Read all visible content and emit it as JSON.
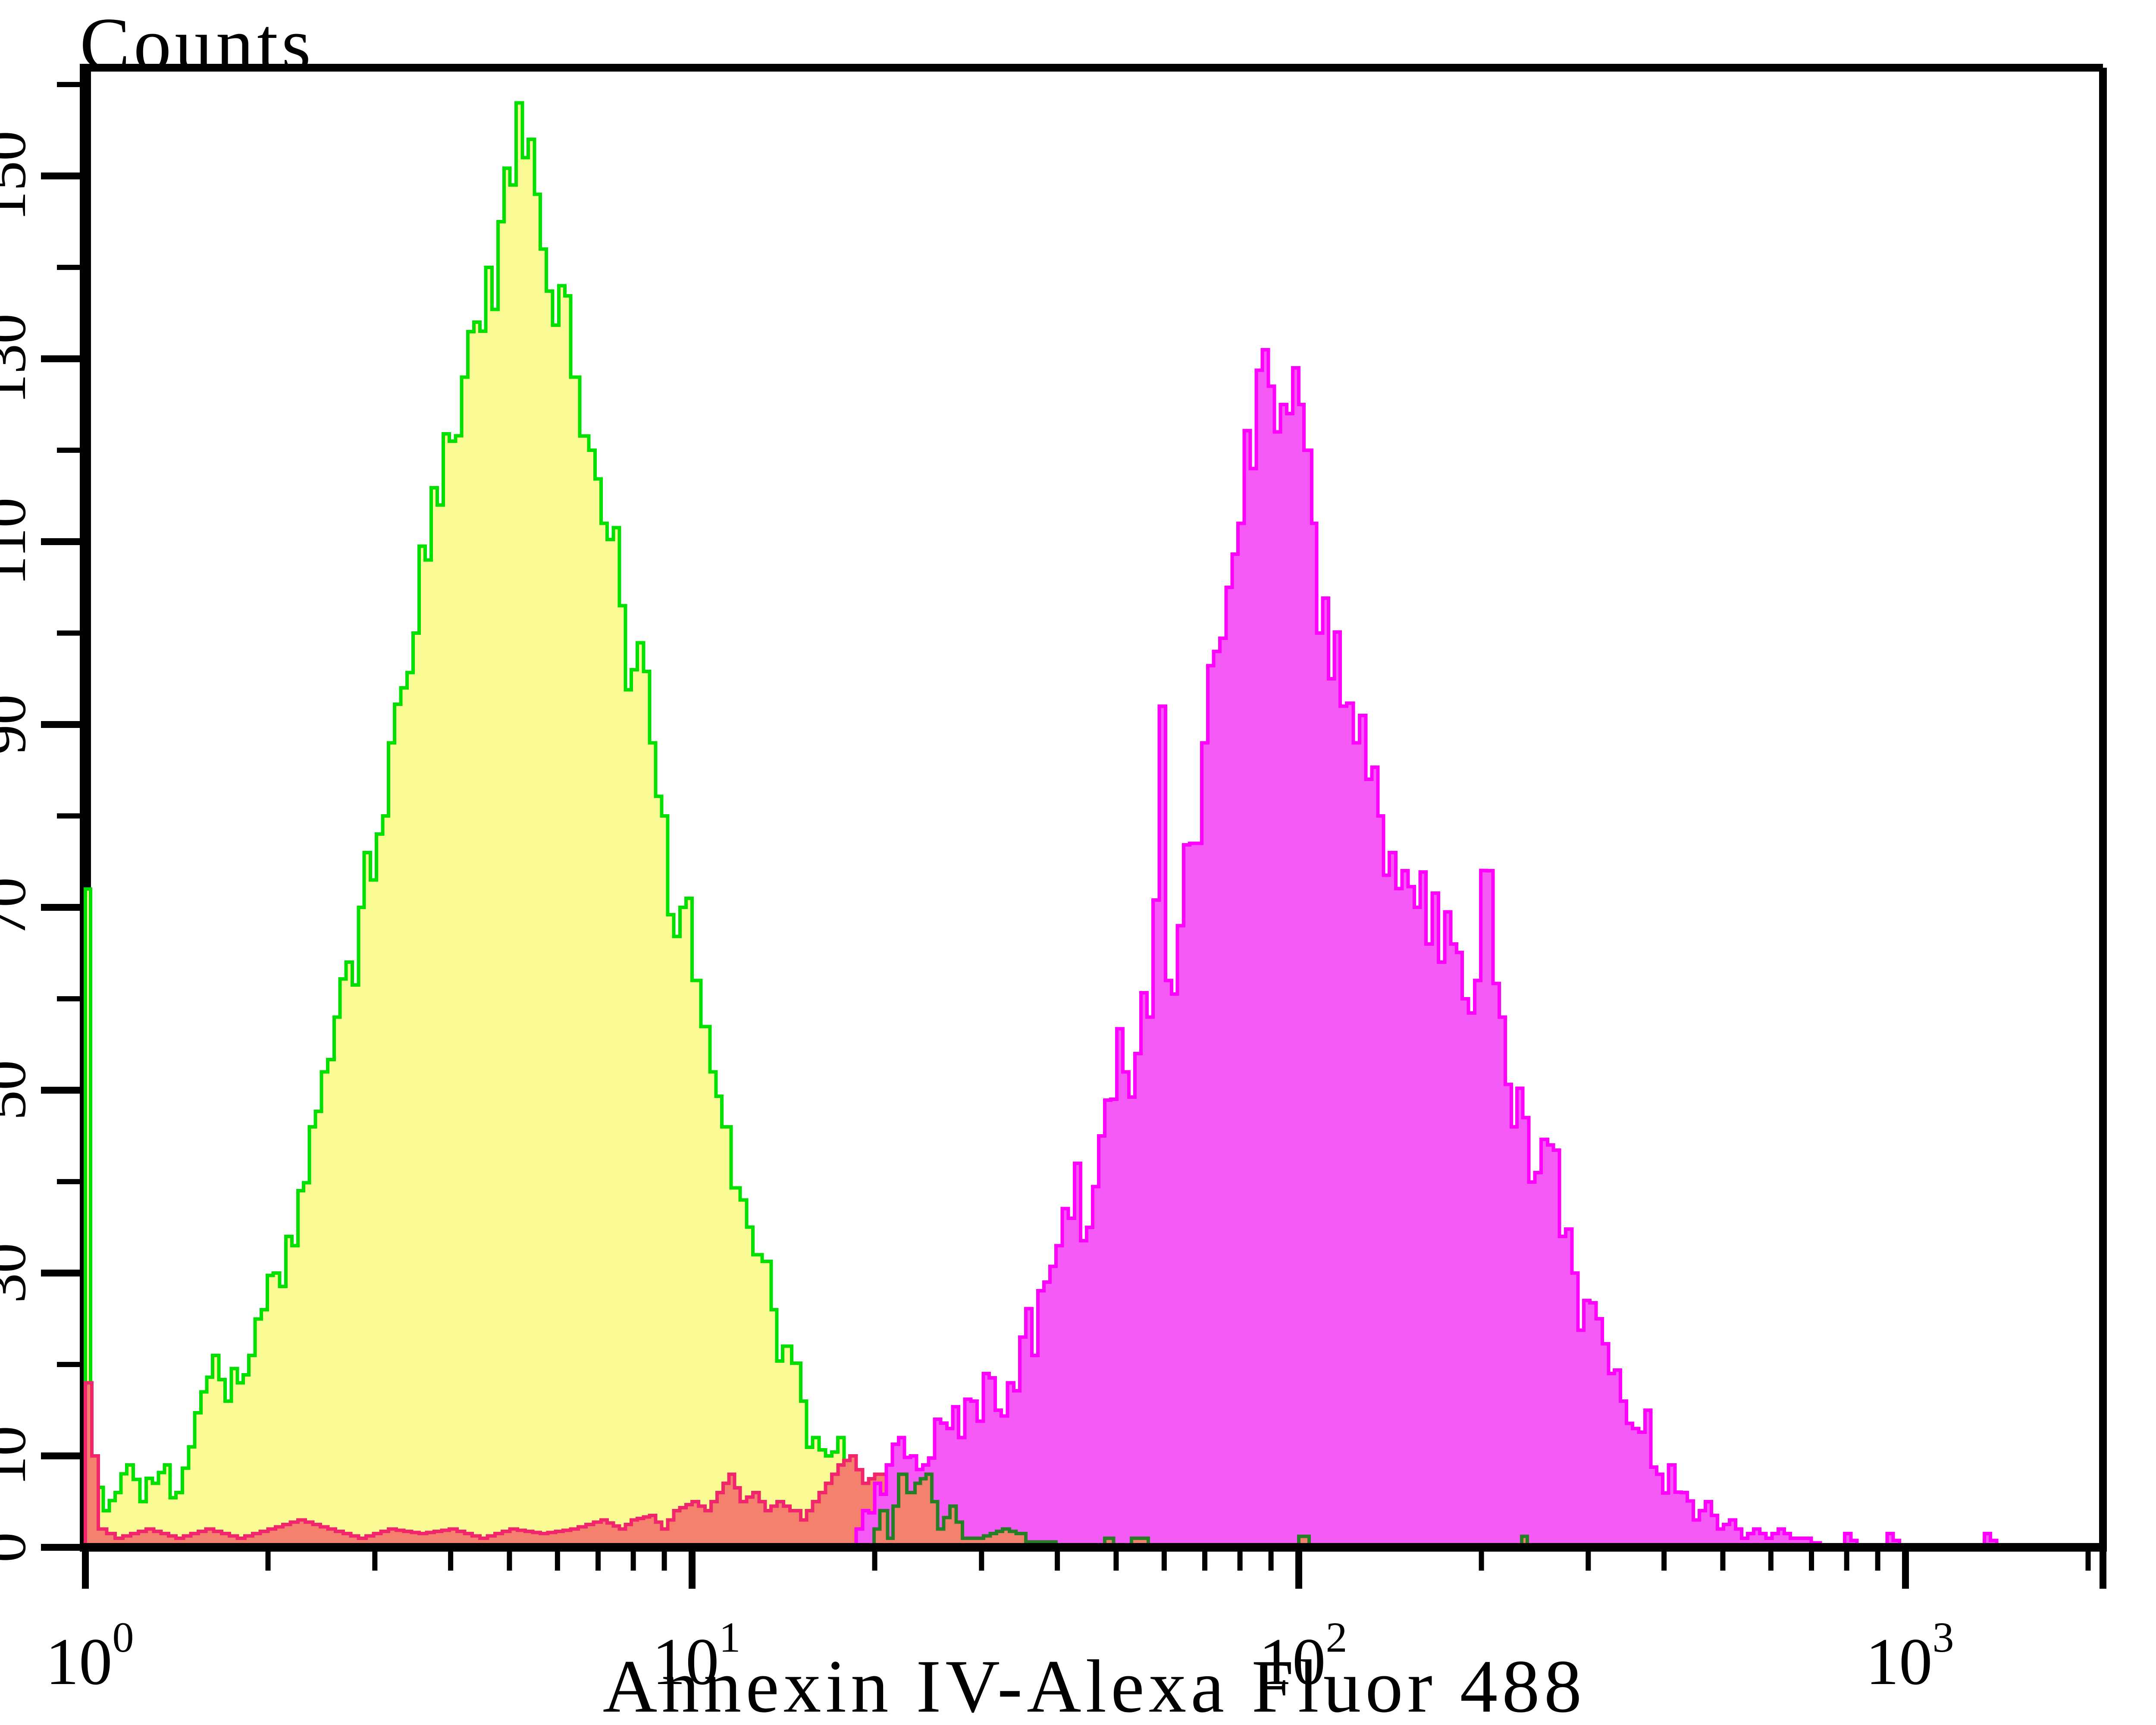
{
  "page": {
    "background": "#ffffff"
  },
  "chart_data": {
    "type": "area",
    "subtype": "flow-cytometry-histogram-overlay",
    "title": "Counts",
    "xlabel": "Annexin IV-Alexa Fluor 488",
    "grid": false,
    "legend": false,
    "x_axis": {
      "scale": "log10",
      "xlim": [
        1,
        2400
      ],
      "decades": [
        {
          "value": 1,
          "base": "10",
          "exp": "0"
        },
        {
          "value": 10,
          "base": "10",
          "exp": "1"
        },
        {
          "value": 100,
          "base": "10",
          "exp": "2"
        },
        {
          "value": 1000,
          "base": "10",
          "exp": "3"
        }
      ],
      "minor_tick_multiples": [
        2,
        3,
        4,
        5,
        6,
        7,
        8,
        9
      ]
    },
    "y_axis": {
      "label": "Counts",
      "ylim": [
        0,
        160
      ],
      "major_ticks": [
        0,
        10,
        30,
        50,
        70,
        90,
        110,
        130,
        150
      ],
      "minor_ticks": [
        20,
        40,
        60,
        80,
        100,
        120,
        140,
        160
      ]
    },
    "colors": {
      "yellow": "#fbfb95",
      "green": "#00e000",
      "salmon": "#f4816e",
      "crimson": "#f0256c",
      "magenta_fill": "#f65af6",
      "magenta": "#ff00ff",
      "dark_green": "#267f26",
      "axis": "#000000",
      "text": "#000000"
    },
    "series": [
      {
        "name": "left-peak-yellow-green",
        "fill": "yellow",
        "outline": "green",
        "jitter": true,
        "seed": 11,
        "peak": {
          "x": 5.2,
          "count": 154
        },
        "points": [
          [
            1.0,
            72
          ],
          [
            1.02,
            9
          ],
          [
            1.07,
            4
          ],
          [
            1.12,
            6
          ],
          [
            1.17,
            9
          ],
          [
            1.23,
            5
          ],
          [
            1.29,
            7
          ],
          [
            1.35,
            9
          ],
          [
            1.41,
            6
          ],
          [
            1.48,
            11
          ],
          [
            1.55,
            17
          ],
          [
            1.62,
            21
          ],
          [
            1.7,
            16
          ],
          [
            1.78,
            18
          ],
          [
            1.86,
            21
          ],
          [
            1.95,
            26
          ],
          [
            2.04,
            30
          ],
          [
            2.14,
            34
          ],
          [
            2.24,
            39
          ],
          [
            2.34,
            46
          ],
          [
            2.45,
            52
          ],
          [
            2.57,
            58
          ],
          [
            2.69,
            64
          ],
          [
            2.82,
            70
          ],
          [
            2.88,
            76
          ],
          [
            2.95,
            73
          ],
          [
            3.09,
            80
          ],
          [
            3.16,
            88
          ],
          [
            3.31,
            94
          ],
          [
            3.47,
            100
          ],
          [
            3.63,
            108
          ],
          [
            3.8,
            114
          ],
          [
            3.98,
            121
          ],
          [
            4.17,
            128
          ],
          [
            4.37,
            134
          ],
          [
            4.57,
            140
          ],
          [
            4.79,
            145
          ],
          [
            5.01,
            149
          ],
          [
            5.25,
            152
          ],
          [
            5.37,
            154
          ],
          [
            5.5,
            148
          ],
          [
            5.62,
            142
          ],
          [
            6.03,
            138
          ],
          [
            6.31,
            128
          ],
          [
            6.76,
            120
          ],
          [
            7.08,
            112
          ],
          [
            7.59,
            103
          ],
          [
            7.94,
            96
          ],
          [
            8.51,
            88
          ],
          [
            8.91,
            80
          ],
          [
            9.55,
            70
          ],
          [
            10.0,
            62
          ],
          [
            10.7,
            52
          ],
          [
            11.2,
            46
          ],
          [
            12.0,
            38
          ],
          [
            12.6,
            32
          ],
          [
            13.5,
            26
          ],
          [
            14.1,
            22
          ],
          [
            15.1,
            16
          ],
          [
            15.8,
            12
          ],
          [
            16.6,
            10
          ],
          [
            17.8,
            9
          ],
          [
            19.1,
            5
          ],
          [
            20.4,
            7
          ],
          [
            21.4,
            3
          ],
          [
            22.4,
            5
          ],
          [
            24.0,
            2
          ],
          [
            25.1,
            4
          ],
          [
            26.9,
            1
          ],
          [
            28.8,
            3
          ],
          [
            30.9,
            1
          ],
          [
            33.1,
            2
          ],
          [
            35.5,
            0
          ]
        ]
      },
      {
        "name": "small-salmon-population",
        "fill": "salmon",
        "outline": "crimson",
        "jitter": false,
        "seed": 3,
        "peak": {
          "x": 18,
          "count": 10
        },
        "points": [
          [
            1.0,
            18
          ],
          [
            1.05,
            2
          ],
          [
            1.12,
            1
          ],
          [
            1.26,
            2
          ],
          [
            1.41,
            1
          ],
          [
            1.58,
            2
          ],
          [
            1.78,
            1
          ],
          [
            2.0,
            2
          ],
          [
            2.24,
            3
          ],
          [
            2.51,
            2
          ],
          [
            2.82,
            1
          ],
          [
            3.16,
            2
          ],
          [
            3.55,
            1.5
          ],
          [
            3.98,
            2
          ],
          [
            4.47,
            1
          ],
          [
            5.01,
            2
          ],
          [
            5.62,
            1.5
          ],
          [
            6.31,
            2
          ],
          [
            7.08,
            3
          ],
          [
            7.59,
            2
          ],
          [
            7.94,
            3
          ],
          [
            8.51,
            3.5
          ],
          [
            8.91,
            2
          ],
          [
            9.33,
            4
          ],
          [
            10.0,
            5
          ],
          [
            10.5,
            4
          ],
          [
            11.0,
            6
          ],
          [
            11.5,
            8
          ],
          [
            12.0,
            5
          ],
          [
            12.6,
            6
          ],
          [
            13.2,
            4
          ],
          [
            13.8,
            5
          ],
          [
            14.5,
            4
          ],
          [
            15.1,
            3
          ],
          [
            15.8,
            5
          ],
          [
            16.6,
            7
          ],
          [
            17.4,
            9
          ],
          [
            18.2,
            10
          ],
          [
            19.1,
            7
          ],
          [
            20.0,
            8
          ],
          [
            20.9,
            8
          ],
          [
            21.9,
            5
          ],
          [
            22.9,
            5
          ],
          [
            24.0,
            4
          ],
          [
            25.1,
            4
          ],
          [
            26.3,
            4
          ],
          [
            27.5,
            2
          ],
          [
            28.8,
            3
          ],
          [
            30.2,
            3
          ],
          [
            31.6,
            2
          ],
          [
            33.1,
            1
          ],
          [
            34.7,
            0
          ]
        ]
      },
      {
        "name": "right-peak-magenta",
        "fill": "magenta_fill",
        "outline": "magenta",
        "jitter": true,
        "seed": 23,
        "peak": {
          "x": 90,
          "count": 131
        },
        "points": [
          [
            18.2,
            0
          ],
          [
            19.1,
            4
          ],
          [
            20.0,
            7
          ],
          [
            20.9,
            9
          ],
          [
            21.9,
            12
          ],
          [
            22.9,
            10
          ],
          [
            24.0,
            9
          ],
          [
            25.1,
            14
          ],
          [
            26.3,
            13
          ],
          [
            27.5,
            12
          ],
          [
            28.8,
            16
          ],
          [
            30.2,
            19
          ],
          [
            31.6,
            15
          ],
          [
            33.1,
            18
          ],
          [
            34.7,
            23
          ],
          [
            36.3,
            21
          ],
          [
            38.0,
            29
          ],
          [
            39.8,
            33
          ],
          [
            41.7,
            36
          ],
          [
            42.7,
            42
          ],
          [
            44.7,
            35
          ],
          [
            46.8,
            45
          ],
          [
            49.0,
            49
          ],
          [
            51.3,
            52
          ],
          [
            53.7,
            54
          ],
          [
            56.2,
            58
          ],
          [
            58.9,
            92
          ],
          [
            60.3,
            62
          ],
          [
            63.1,
            68
          ],
          [
            66.1,
            77
          ],
          [
            69.2,
            88
          ],
          [
            72.4,
            98
          ],
          [
            75.9,
            105
          ],
          [
            79.4,
            112
          ],
          [
            83.2,
            118
          ],
          [
            87.1,
            131
          ],
          [
            89.1,
            127
          ],
          [
            91.2,
            122
          ],
          [
            93.3,
            125
          ],
          [
            95.5,
            124
          ],
          [
            97.7,
            129
          ],
          [
            100,
            125
          ],
          [
            102,
            120
          ],
          [
            105,
            112
          ],
          [
            107,
            100
          ],
          [
            112,
            95
          ],
          [
            117,
            92
          ],
          [
            123,
            88
          ],
          [
            129,
            84
          ],
          [
            135,
            80
          ],
          [
            141,
            76
          ],
          [
            148,
            74
          ],
          [
            155,
            70
          ],
          [
            162,
            66
          ],
          [
            170,
            64
          ],
          [
            178,
            66
          ],
          [
            186,
            60
          ],
          [
            195,
            62
          ],
          [
            204,
            74
          ],
          [
            214,
            58
          ],
          [
            224,
            46
          ],
          [
            234,
            47
          ],
          [
            245,
            41
          ],
          [
            257,
            44
          ],
          [
            269,
            34
          ],
          [
            282,
            30
          ],
          [
            295,
            27
          ],
          [
            309,
            25
          ],
          [
            324,
            19
          ],
          [
            339,
            16
          ],
          [
            355,
            13
          ],
          [
            372,
            15
          ],
          [
            389,
            8
          ],
          [
            407,
            9
          ],
          [
            427,
            6
          ],
          [
            447,
            3
          ],
          [
            468,
            5
          ],
          [
            490,
            2
          ],
          [
            513,
            3
          ],
          [
            537,
            1
          ],
          [
            562,
            2
          ],
          [
            589,
            1
          ],
          [
            617,
            2
          ],
          [
            646,
            1
          ],
          [
            676,
            1
          ],
          [
            724,
            0
          ],
          [
            776,
            0
          ],
          [
            794,
            1.5
          ],
          [
            832,
            0
          ],
          [
            912,
            0
          ],
          [
            933,
            1.5
          ],
          [
            977,
            0
          ],
          [
            1318,
            0
          ],
          [
            1349,
            1.5
          ],
          [
            1413,
            0
          ]
        ]
      },
      {
        "name": "overlap-tail-dark-green",
        "fill": "salmon",
        "outline": "dark_green",
        "jitter": false,
        "seed": 5,
        "points": [
          [
            19.5,
            0
          ],
          [
            20.4,
            4
          ],
          [
            21.0,
            1
          ],
          [
            21.9,
            8
          ],
          [
            22.6,
            6
          ],
          [
            23.3,
            7
          ],
          [
            24.3,
            8
          ],
          [
            25.4,
            2
          ],
          [
            26.6,
            4.5
          ],
          [
            27.9,
            1
          ],
          [
            29.5,
            1
          ],
          [
            31.0,
            1.5
          ],
          [
            32.5,
            2
          ],
          [
            34.2,
            1.5
          ],
          [
            35.5,
            0.6
          ],
          [
            38.9,
            0.6
          ],
          [
            39.8,
            0
          ],
          [
            47,
            0
          ],
          [
            47.9,
            1
          ],
          [
            49.5,
            0
          ],
          [
            52,
            0
          ],
          [
            53,
            1
          ],
          [
            55.5,
            1
          ],
          [
            56.5,
            0
          ],
          [
            97.7,
            0
          ],
          [
            100,
            1.2
          ],
          [
            104,
            0
          ],
          [
            229,
            0
          ],
          [
            233,
            1.2
          ],
          [
            238,
            0
          ]
        ]
      }
    ]
  }
}
